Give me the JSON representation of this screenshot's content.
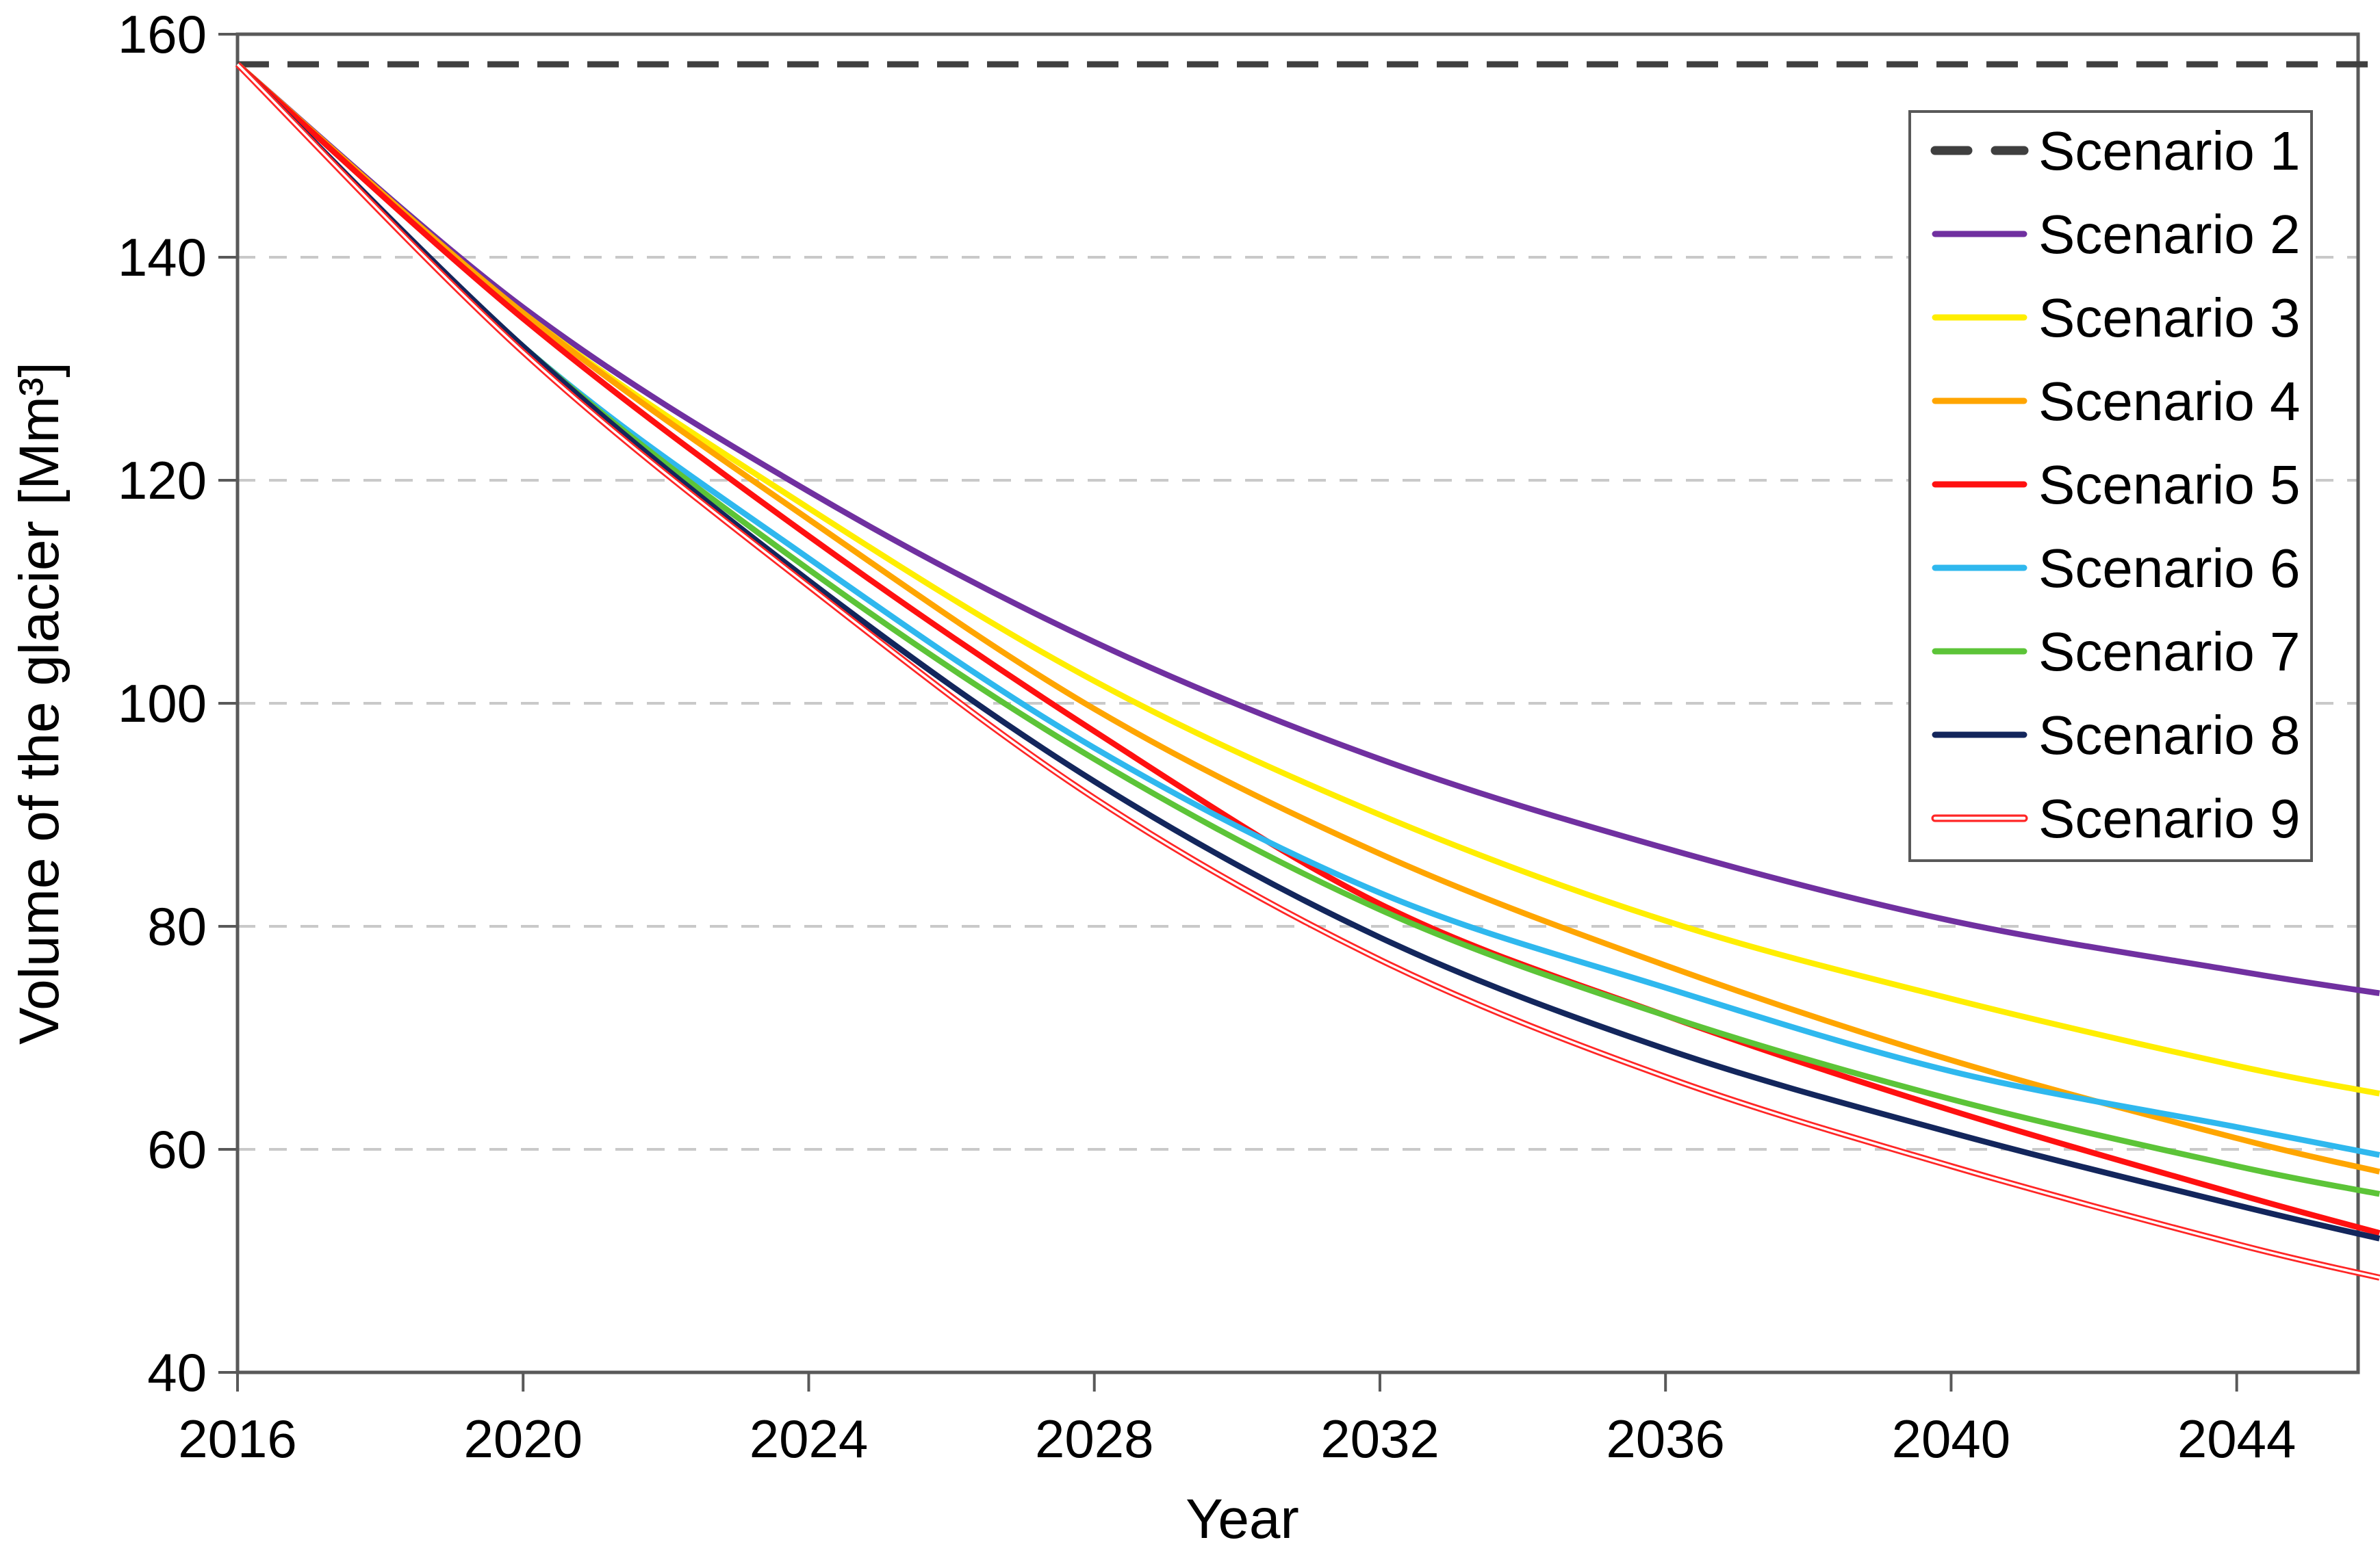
{
  "figure": {
    "kind": "line chart",
    "background": "#ffffff",
    "border_color": "#595959",
    "gridline_color": "#c9c9c9",
    "text_color": "#000000"
  },
  "chart_data": {
    "type": "line",
    "title": "",
    "xlabel": "Year",
    "ylabel": "Volume of the glacier [Mm³]",
    "xlim": [
      2016,
      2045.7
    ],
    "ylim": [
      40,
      160
    ],
    "x_ticks": [
      2016,
      2020,
      2024,
      2028,
      2032,
      2036,
      2040,
      2044
    ],
    "y_ticks": [
      40,
      60,
      80,
      100,
      120,
      140,
      160
    ],
    "grid": "horizontal-dashed",
    "legend_position": "top-right",
    "x": [
      2016,
      2020,
      2024,
      2028,
      2032,
      2036,
      2040,
      2044,
      2046
    ],
    "series": [
      {
        "name": "Scenario 1",
        "color": "#3f3f3f",
        "style": "dashed",
        "values": [
          157.3,
          157.3,
          157.3,
          157.3,
          157.3,
          157.3,
          157.3,
          157.3,
          157.3
        ]
      },
      {
        "name": "Scenario 2",
        "color": "#7030a0",
        "style": "solid",
        "values": [
          157.3,
          135.5,
          119,
          105.5,
          95,
          87,
          80.5,
          76,
          74
        ]
      },
      {
        "name": "Scenario 3",
        "color": "#ffee00",
        "style": "solid",
        "values": [
          157.3,
          135,
          117.5,
          102,
          90,
          80.5,
          73.5,
          67.5,
          65
        ]
      },
      {
        "name": "Scenario 4",
        "color": "#ffa500",
        "style": "solid",
        "values": [
          157.3,
          135,
          116.5,
          99.5,
          86.5,
          76.5,
          68,
          61,
          58
        ]
      },
      {
        "name": "Scenario 5",
        "color": "#ff1010",
        "style": "solid",
        "values": [
          157.3,
          134.5,
          115,
          97.5,
          82,
          72,
          63.5,
          56,
          52.5
        ]
      },
      {
        "name": "Scenario 6",
        "color": "#2fb8ee",
        "style": "solid",
        "values": [
          157.3,
          132,
          113,
          96,
          83,
          74.5,
          67,
          62,
          59.5
        ]
      },
      {
        "name": "Scenario 7",
        "color": "#5cc438",
        "style": "solid",
        "values": [
          157.3,
          132,
          112,
          95,
          81.5,
          72,
          64.5,
          58.5,
          56
        ]
      },
      {
        "name": "Scenario 8",
        "color": "#13265c",
        "style": "solid",
        "values": [
          157.3,
          132,
          111,
          93,
          79,
          69,
          61.5,
          55,
          52
        ]
      },
      {
        "name": "Scenario 9",
        "color": "#ff2626",
        "style": "double",
        "values": [
          157.3,
          131.5,
          110.5,
          91.5,
          77,
          66.5,
          58.5,
          51.5,
          48.5
        ]
      }
    ]
  }
}
